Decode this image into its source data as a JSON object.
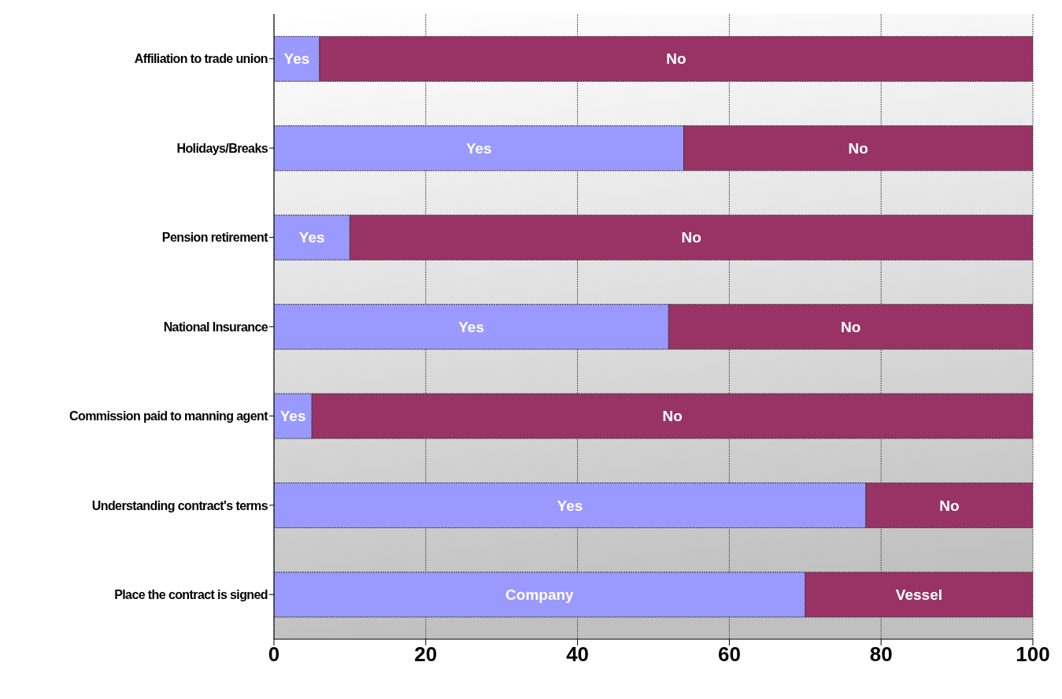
{
  "chart_data": {
    "type": "bar",
    "orientation": "horizontal",
    "stacked": true,
    "categories": [
      "Affiliation to trade union",
      "Holidays/Breaks",
      "Pension retirement",
      "National Insurance",
      "Commission paid to manning agent",
      "Understanding contract's terms",
      "Place the contract is signed"
    ],
    "series": [
      {
        "color": "#9999ff",
        "values": [
          6,
          54,
          10,
          52,
          5,
          78,
          70
        ],
        "value_labels": [
          "Yes",
          "Yes",
          "Yes",
          "Yes",
          "Yes",
          "Yes",
          "Company"
        ]
      },
      {
        "color": "#993366",
        "values": [
          94,
          46,
          90,
          48,
          95,
          22,
          30
        ],
        "value_labels": [
          "No",
          "No",
          "No",
          "No",
          "No",
          "No",
          "Vessel"
        ]
      }
    ],
    "xlim": [
      0,
      100
    ],
    "xticks": [
      0,
      20,
      40,
      60,
      80,
      100
    ],
    "grid": "x"
  }
}
